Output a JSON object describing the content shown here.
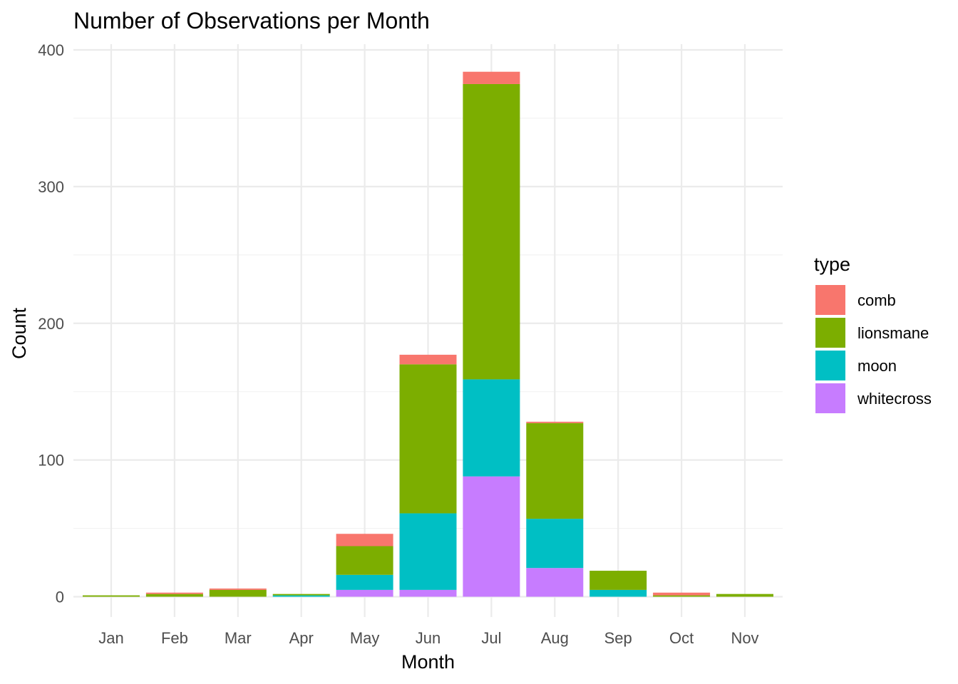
{
  "chart_data": {
    "type": "bar",
    "stacked": true,
    "title": "Number of Observations per Month",
    "xlabel": "Month",
    "ylabel": "Count",
    "categories": [
      "Jan",
      "Feb",
      "Mar",
      "Apr",
      "May",
      "Jun",
      "Jul",
      "Aug",
      "Sep",
      "Oct",
      "Nov"
    ],
    "ylim": [
      0,
      400
    ],
    "yticks": [
      0,
      100,
      200,
      300,
      400
    ],
    "grid": true,
    "legend": {
      "title": "type",
      "position": "right"
    },
    "series": [
      {
        "name": "whitecross",
        "color": "#C77CFF",
        "values": [
          0,
          0,
          0,
          0,
          5,
          5,
          88,
          21,
          0,
          0,
          0
        ]
      },
      {
        "name": "moon",
        "color": "#00BFC4",
        "values": [
          0,
          0,
          0,
          1,
          11,
          56,
          71,
          36,
          5,
          0,
          0
        ]
      },
      {
        "name": "lionsmane",
        "color": "#7CAE00",
        "values": [
          1,
          2,
          5,
          1,
          21,
          109,
          216,
          70,
          14,
          1,
          2
        ]
      },
      {
        "name": "comb",
        "color": "#F8766D",
        "values": [
          0,
          1,
          1,
          0,
          9,
          7,
          9,
          1,
          0,
          2,
          0
        ]
      }
    ],
    "legend_order": [
      "comb",
      "lionsmane",
      "moon",
      "whitecross"
    ]
  }
}
